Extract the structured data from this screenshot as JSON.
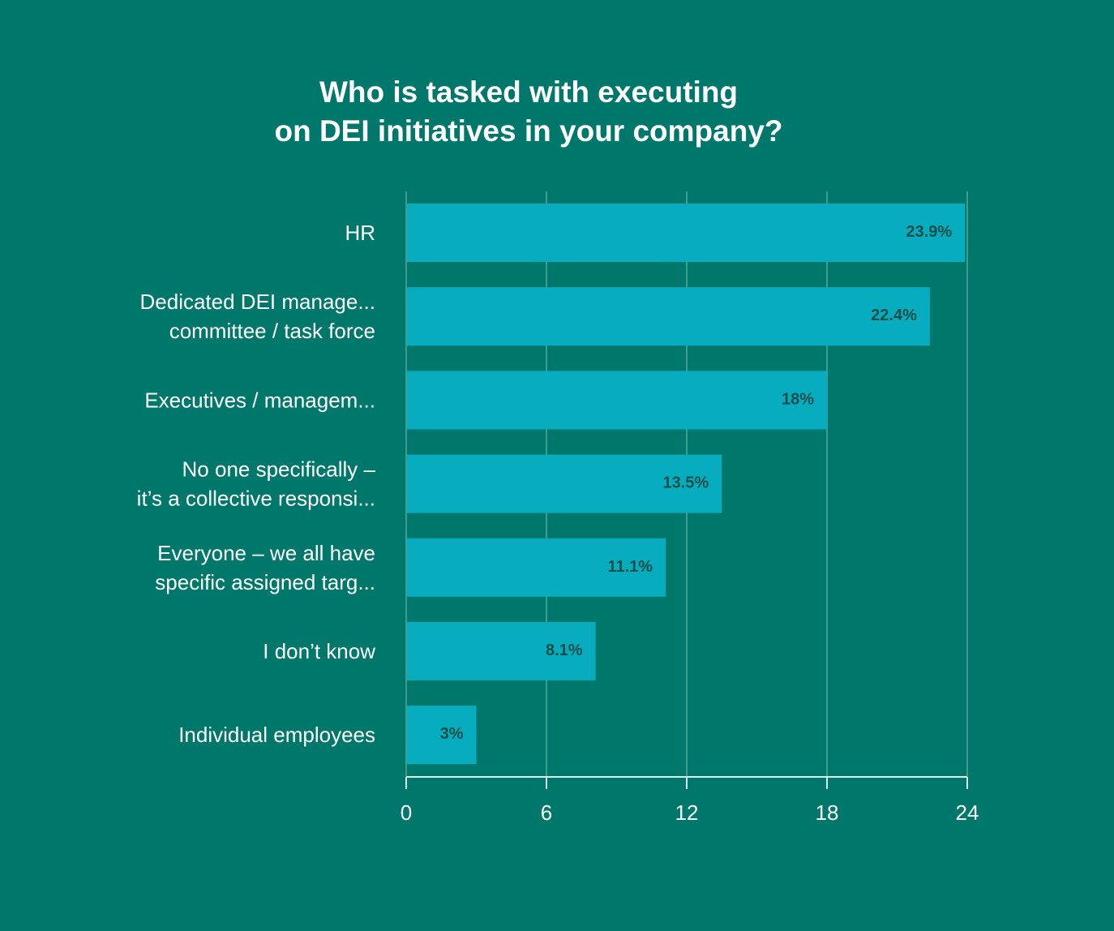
{
  "chart_data": {
    "type": "bar",
    "orientation": "horizontal",
    "title": "Who is tasked with executing\non DEI initiatives in your company?",
    "categories": [
      [
        "HR"
      ],
      [
        "Dedicated DEI manage...",
        "committee / task force"
      ],
      [
        "Executives / managem..."
      ],
      [
        "No one specifically –",
        "it’s a collective responsi..."
      ],
      [
        "Everyone – we all have",
        "specific assigned targ..."
      ],
      [
        "I don’t know"
      ],
      [
        "Individual employees"
      ]
    ],
    "values": [
      23.9,
      22.4,
      18,
      13.5,
      11.1,
      8.1,
      3
    ],
    "value_labels": [
      "23.9%",
      "22.4%",
      "18%",
      "13.5%",
      "11.1%",
      "8.1%",
      "3%"
    ],
    "xlim": [
      0,
      24
    ],
    "xticks": [
      "0",
      "6",
      "12",
      "18",
      "24"
    ],
    "grid": true,
    "colors": {
      "background": "#00776b",
      "bar": "#08acbf",
      "value_text": "#0b4f4a",
      "grid": "#3f9c90",
      "axis": "#d8ece9",
      "text": "#ffffff"
    }
  }
}
